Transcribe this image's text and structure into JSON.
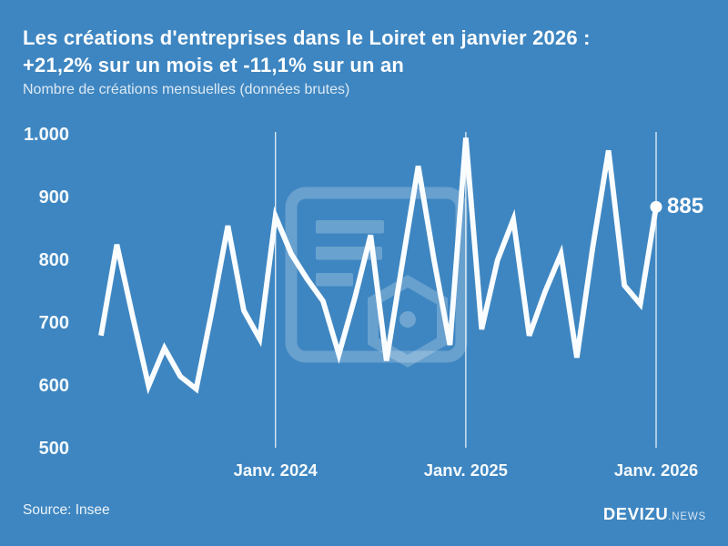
{
  "header": {
    "title_line1": "Les créations d'entreprises dans le Loiret en janvier 2026 :",
    "title_line2": "+21,2% sur un mois et -11,1% sur un an",
    "subtitle": "Nombre de créations mensuelles (données brutes)"
  },
  "chart_data": {
    "type": "line",
    "title": "Les créations d'entreprises dans le Loiret en janvier 2026 : +21,2% sur un mois et -11,1% sur un an",
    "ylabel": "Nombre de créations mensuelles (données brutes)",
    "xlabel": "",
    "legend": "none",
    "grid": "vertical year markers only",
    "ylim": [
      500,
      1005
    ],
    "months": [
      "2023-02",
      "2023-03",
      "2023-04",
      "2023-05",
      "2023-06",
      "2023-07",
      "2023-08",
      "2023-09",
      "2023-10",
      "2023-11",
      "2023-12",
      "2024-01",
      "2024-02",
      "2024-03",
      "2024-04",
      "2024-05",
      "2024-06",
      "2024-07",
      "2024-08",
      "2024-09",
      "2024-10",
      "2024-11",
      "2024-12",
      "2025-01",
      "2025-02",
      "2025-03",
      "2025-04",
      "2025-05",
      "2025-06",
      "2025-07",
      "2025-08",
      "2025-09",
      "2025-10",
      "2025-11",
      "2025-12",
      "2026-01"
    ],
    "values": [
      680,
      825,
      710,
      600,
      660,
      615,
      595,
      720,
      855,
      720,
      675,
      870,
      810,
      770,
      735,
      650,
      740,
      840,
      640,
      795,
      950,
      800,
      665,
      995,
      690,
      800,
      865,
      680,
      750,
      810,
      645,
      820,
      975,
      760,
      730,
      885
    ],
    "yticks": [
      {
        "label": "1.000",
        "value": 1000
      },
      {
        "label": "900",
        "value": 900
      },
      {
        "label": "800",
        "value": 800
      },
      {
        "label": "700",
        "value": 700
      },
      {
        "label": "600",
        "value": 600
      },
      {
        "label": "500",
        "value": 500
      }
    ],
    "xticks": [
      {
        "label": "Janv. 2024",
        "month": "2024-01"
      },
      {
        "label": "Janv. 2025",
        "month": "2025-01"
      },
      {
        "label": "Janv. 2026",
        "month": "2026-01"
      }
    ],
    "end_label": "885",
    "end_value": 885
  },
  "footer": {
    "source": "Source: Insee",
    "brand": "DEVIZU",
    "brand_suffix": ".NEWS"
  },
  "colors": {
    "background": "#3e86c1",
    "line": "#fafdff",
    "text": "#ffffff",
    "marker": "rgba(255,255,255,0.8)",
    "watermark": "rgba(255,255,255,0.23)"
  }
}
